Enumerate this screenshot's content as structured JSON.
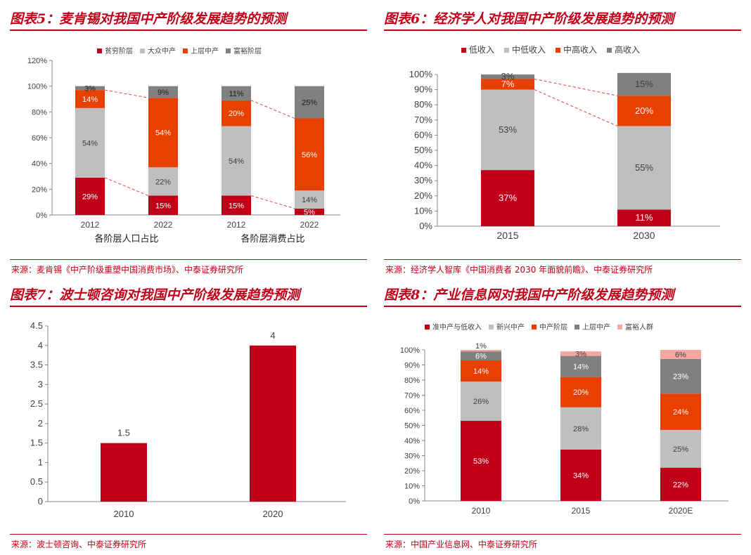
{
  "colors": {
    "red": "#c00018",
    "gray": "#bfbfbf",
    "orange": "#e84000",
    "darkgray": "#808080",
    "pink": "#f4a8a0"
  },
  "panels": [
    {
      "title": "图表5：麦肯锡对我国中产阶级发展趋势的预测",
      "source": "来源：麦肯锡《中产阶级重塑中国消费市场》、中泰证券研究所"
    },
    {
      "title": "图表6：经济学人对我国中产阶级发展趋势的预测",
      "source": "来源：经济学人智库《中国消费者 2030 年面貌前瞻》、中泰证券研究所"
    },
    {
      "title": "图表7：波士顿咨询对我国中产阶级发展趋势预测",
      "source": "来源：波士顿咨询、中泰证券研究所"
    },
    {
      "title": "图表8：产业信息网对我国中产阶级发展趋势预测",
      "source": "来源：中国产业信息网、中泰证券研究所"
    }
  ],
  "chart_data": [
    {
      "type": "bar",
      "stacked": true,
      "legend_position": "top",
      "categories": [
        "2012",
        "2022",
        "2012",
        "2022"
      ],
      "group_labels": [
        "各阶层人口占比",
        "各阶层消费占比"
      ],
      "ylim": [
        0,
        120
      ],
      "yticks": [
        "0%",
        "20%",
        "40%",
        "60%",
        "80%",
        "100%",
        "120%"
      ],
      "series": [
        {
          "name": "贫穷阶层",
          "values": [
            29,
            15,
            15,
            5
          ],
          "labels": [
            "29%",
            "15%",
            "15%",
            "5%"
          ]
        },
        {
          "name": "大众中产",
          "values": [
            54,
            22,
            54,
            14
          ],
          "labels": [
            "54%",
            "22%",
            "54%",
            "14%"
          ]
        },
        {
          "name": "上层中产",
          "values": [
            14,
            54,
            20,
            56
          ],
          "labels": [
            "14%",
            "54%",
            "20%",
            "56%"
          ]
        },
        {
          "name": "富裕阶层",
          "values": [
            3,
            9,
            11,
            25
          ],
          "labels": [
            "3%",
            "9%",
            "11%",
            "25%"
          ]
        }
      ]
    },
    {
      "type": "bar",
      "stacked": true,
      "legend_position": "top",
      "categories": [
        "2015",
        "2030"
      ],
      "ylim": [
        0,
        100
      ],
      "yticks": [
        "0%",
        "10%",
        "20%",
        "30%",
        "40%",
        "50%",
        "60%",
        "70%",
        "80%",
        "90%",
        "100%"
      ],
      "series": [
        {
          "name": "低收入",
          "values": [
            37,
            11
          ],
          "labels": [
            "37%",
            "11%"
          ]
        },
        {
          "name": "中低收入",
          "values": [
            53,
            55
          ],
          "labels": [
            "53%",
            "55%"
          ]
        },
        {
          "name": "中高收入",
          "values": [
            7,
            20
          ],
          "labels": [
            "7%",
            "20%"
          ]
        },
        {
          "name": "高收入",
          "values": [
            3,
            15
          ],
          "labels": [
            "3%",
            "15%"
          ]
        }
      ]
    },
    {
      "type": "bar",
      "categories": [
        "2010",
        "2020"
      ],
      "values": [
        1.5,
        4
      ],
      "value_labels": [
        "1.5",
        "4"
      ],
      "ylim": [
        0,
        4.5
      ],
      "yticks": [
        "0",
        "0.5",
        "1",
        "1.5",
        "2",
        "2.5",
        "3",
        "3.5",
        "4",
        "4.5"
      ]
    },
    {
      "type": "bar",
      "stacked": true,
      "legend_position": "top",
      "categories": [
        "2010",
        "2015",
        "2020E"
      ],
      "ylim": [
        0,
        100
      ],
      "yticks": [
        "0%",
        "10%",
        "20%",
        "30%",
        "40%",
        "50%",
        "60%",
        "70%",
        "80%",
        "90%",
        "100%"
      ],
      "series": [
        {
          "name": "准中产与低收入",
          "values": [
            53,
            34,
            22
          ],
          "labels": [
            "53%",
            "34%",
            "22%"
          ]
        },
        {
          "name": "新兴中产",
          "values": [
            26,
            28,
            25
          ],
          "labels": [
            "26%",
            "28%",
            "25%"
          ]
        },
        {
          "name": "中产阶层",
          "values": [
            14,
            20,
            24
          ],
          "labels": [
            "14%",
            "20%",
            "24%"
          ]
        },
        {
          "name": "上层中产",
          "values": [
            6,
            14,
            23
          ],
          "labels": [
            "6%",
            "14%",
            "23%"
          ]
        },
        {
          "name": "富裕人群",
          "values": [
            1,
            3,
            6
          ],
          "labels": [
            "1%",
            "3%",
            "6%"
          ]
        }
      ]
    }
  ]
}
